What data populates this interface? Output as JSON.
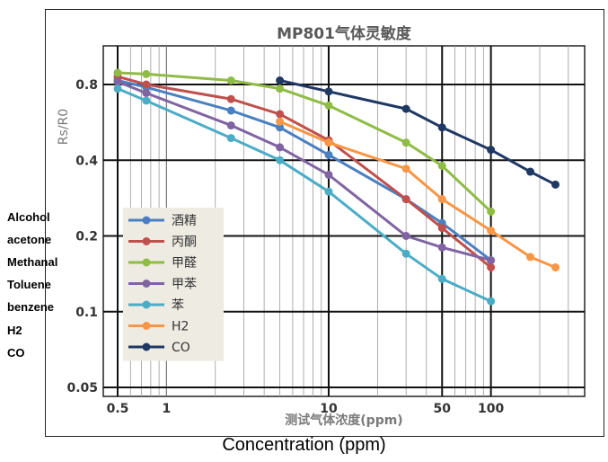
{
  "chart_data": {
    "type": "line",
    "title": "MP801气体灵敏度",
    "xlabel": "测试气体浓度(ppm)",
    "ylabel": "Rs/R0",
    "x_scale": "log",
    "y_scale": "log",
    "xlim": [
      0.5,
      300
    ],
    "ylim": [
      0.05,
      0.95
    ],
    "x_tick_labels": [
      "0.5",
      "1",
      "10",
      "50",
      "100"
    ],
    "x_tick_values": [
      0.5,
      1,
      10,
      50,
      100
    ],
    "y_tick_labels": [
      "0.8",
      "0.4",
      "0.2",
      "0.1",
      "0.05"
    ],
    "y_tick_values": [
      0.8,
      0.4,
      0.2,
      0.1,
      0.05
    ],
    "grid": true,
    "legend_position": "bottom-left",
    "series": [
      {
        "name": "酒精",
        "color": "#4a7fc1",
        "x": [
          0.5,
          0.75,
          2.5,
          5,
          10,
          30,
          50,
          100
        ],
        "y": [
          0.83,
          0.78,
          0.63,
          0.54,
          0.42,
          0.28,
          0.225,
          0.16
        ]
      },
      {
        "name": "丙酮",
        "color": "#c0504d",
        "x": [
          0.5,
          0.75,
          2.5,
          5,
          10,
          30,
          50,
          100
        ],
        "y": [
          0.86,
          0.8,
          0.7,
          0.61,
          0.48,
          0.28,
          0.215,
          0.15
        ]
      },
      {
        "name": "甲醛",
        "color": "#8fbc45",
        "x": [
          0.5,
          0.75,
          2.5,
          5,
          10,
          30,
          50,
          100
        ],
        "y": [
          0.89,
          0.88,
          0.83,
          0.77,
          0.66,
          0.47,
          0.38,
          0.25
        ]
      },
      {
        "name": "甲苯",
        "color": "#8064a2",
        "x": [
          0.5,
          0.75,
          2.5,
          5,
          10,
          30,
          50,
          100
        ],
        "y": [
          0.82,
          0.74,
          0.55,
          0.45,
          0.35,
          0.2,
          0.18,
          0.16
        ]
      },
      {
        "name": "苯",
        "color": "#4bacc6",
        "x": [
          0.5,
          0.75,
          2.5,
          5,
          10,
          30,
          50,
          100
        ],
        "y": [
          0.77,
          0.69,
          0.49,
          0.4,
          0.3,
          0.17,
          0.135,
          0.11
        ]
      },
      {
        "name": "H2",
        "color": "#f79646",
        "x": [
          5,
          10,
          30,
          50,
          100,
          175,
          250
        ],
        "y": [
          0.57,
          0.47,
          0.37,
          0.28,
          0.21,
          0.165,
          0.15
        ]
      },
      {
        "name": "CO",
        "color": "#1f3864",
        "x": [
          5,
          10,
          30,
          50,
          100,
          175,
          250
        ],
        "y": [
          0.83,
          0.75,
          0.64,
          0.54,
          0.44,
          0.36,
          0.32
        ]
      }
    ]
  },
  "side_labels": [
    "Alcohol",
    "acetone",
    "Methanal",
    "Toluene",
    "benzene",
    "H2",
    "CO"
  ],
  "caption": "Concentration (ppm)"
}
